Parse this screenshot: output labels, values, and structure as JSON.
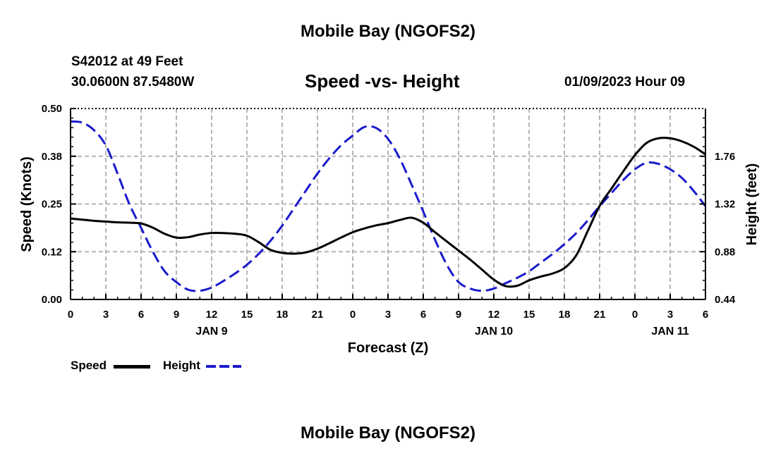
{
  "page": {
    "title_top": "Mobile Bay (NGOFS2)",
    "title_bottom": "Mobile Bay (NGOFS2)",
    "station_line": "S42012 at 49 Feet",
    "coords_line": "30.0600N  87.5480W",
    "date_line": "01/09/2023 Hour 09"
  },
  "legend": {
    "speed_label": "Speed",
    "height_label": "Height"
  },
  "colors": {
    "speed": "#000000",
    "height": "#1a1acc",
    "grid": "#b4b4b4"
  },
  "chart_data": {
    "type": "line",
    "title": "Speed -vs- Height",
    "xlabel": "Forecast (Z)",
    "ylabel_left": "Speed (Knots)",
    "ylabel_right": "Height (feet)",
    "x_unit": "hours since 01/09/2023 00Z",
    "x_range": [
      0,
      54
    ],
    "x_ticks": [
      0,
      3,
      6,
      9,
      12,
      15,
      18,
      21,
      24,
      27,
      30,
      33,
      36,
      39,
      42,
      45,
      48,
      51,
      54
    ],
    "x_tick_labels": [
      "0",
      "3",
      "6",
      "9",
      "12",
      "15",
      "18",
      "21",
      "0",
      "3",
      "6",
      "9",
      "12",
      "15",
      "18",
      "21",
      "0",
      "3",
      "6"
    ],
    "date_labels": [
      {
        "x": 12,
        "label": "JAN 9"
      },
      {
        "x": 36,
        "label": "JAN 10"
      },
      {
        "x": 51,
        "label": "JAN 11"
      }
    ],
    "y_left_range": [
      0,
      0.5
    ],
    "y_left_ticks": [
      0,
      0.125,
      0.25,
      0.375,
      0.5
    ],
    "y_left_tick_labels": [
      "0.00",
      "0.12",
      "0.25",
      "0.38",
      "0.50"
    ],
    "y_right_range": [
      0.44,
      2.2
    ],
    "y_right_ticks": [
      0.44,
      0.88,
      1.32,
      1.76
    ],
    "y_right_tick_labels": [
      "0.44",
      "0.88",
      "1.32",
      "1.76"
    ],
    "grid": true,
    "series": [
      {
        "name": "Speed",
        "axis": "left",
        "style": "solid",
        "x": [
          0,
          1,
          2,
          3,
          4,
          5,
          6,
          7,
          8,
          9,
          10,
          11,
          12,
          13,
          14,
          15,
          16,
          17,
          18,
          19,
          20,
          21,
          22,
          23,
          24,
          25,
          26,
          27,
          28,
          29,
          30,
          31,
          32,
          33,
          34,
          35,
          36,
          37,
          38,
          39,
          40,
          41,
          42,
          43,
          44,
          45,
          46,
          47,
          48,
          49,
          50,
          51,
          52,
          53,
          54
        ],
        "values": [
          0.212,
          0.209,
          0.206,
          0.204,
          0.202,
          0.201,
          0.199,
          0.188,
          0.172,
          0.162,
          0.163,
          0.17,
          0.174,
          0.174,
          0.172,
          0.167,
          0.15,
          0.13,
          0.122,
          0.12,
          0.123,
          0.133,
          0.147,
          0.162,
          0.176,
          0.186,
          0.194,
          0.2,
          0.208,
          0.214,
          0.201,
          0.176,
          0.152,
          0.128,
          0.104,
          0.078,
          0.052,
          0.035,
          0.036,
          0.05,
          0.06,
          0.068,
          0.082,
          0.115,
          0.18,
          0.245,
          0.29,
          0.335,
          0.378,
          0.41,
          0.422,
          0.422,
          0.414,
          0.4,
          0.38
        ]
      },
      {
        "name": "Height",
        "axis": "right",
        "style": "dashed",
        "x": [
          0,
          1,
          2,
          3,
          4,
          5,
          6,
          7,
          8,
          9,
          10,
          11,
          12,
          13,
          14,
          15,
          16,
          17,
          18,
          19,
          20,
          21,
          22,
          23,
          24,
          25,
          26,
          27,
          28,
          29,
          30,
          31,
          32,
          33,
          34,
          35,
          36,
          37,
          38,
          39,
          40,
          41,
          42,
          43,
          44,
          45,
          46,
          47,
          48,
          49,
          50,
          51,
          52,
          53,
          54
        ],
        "values": [
          2.08,
          2.07,
          2.0,
          1.86,
          1.6,
          1.32,
          1.1,
          0.88,
          0.7,
          0.6,
          0.53,
          0.52,
          0.55,
          0.61,
          0.68,
          0.76,
          0.86,
          0.98,
          1.12,
          1.28,
          1.44,
          1.6,
          1.74,
          1.86,
          1.95,
          2.03,
          2.02,
          1.92,
          1.74,
          1.5,
          1.25,
          0.99,
          0.76,
          0.6,
          0.54,
          0.52,
          0.54,
          0.59,
          0.64,
          0.7,
          0.78,
          0.86,
          0.95,
          1.05,
          1.17,
          1.3,
          1.42,
          1.54,
          1.64,
          1.7,
          1.69,
          1.64,
          1.56,
          1.44,
          1.3
        ]
      }
    ]
  }
}
